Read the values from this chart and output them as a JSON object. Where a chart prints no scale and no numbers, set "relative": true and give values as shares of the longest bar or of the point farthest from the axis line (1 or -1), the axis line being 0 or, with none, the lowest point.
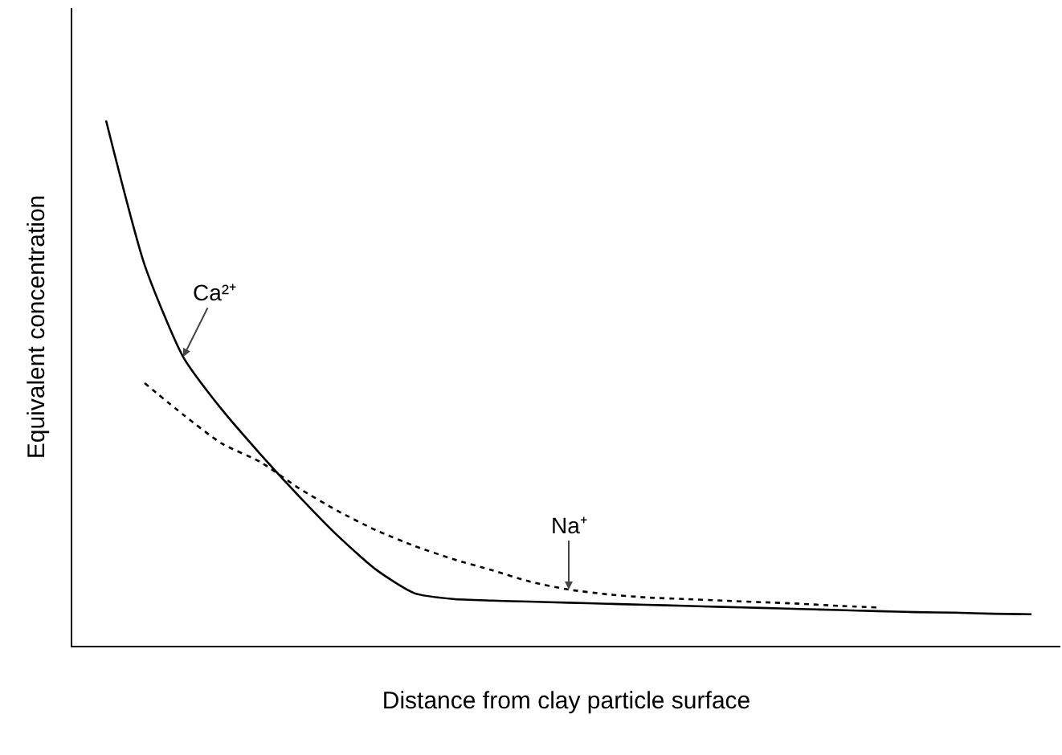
{
  "chart_data": {
    "type": "line",
    "relative": true,
    "xlabel": "Distance from clay particle surface",
    "ylabel": "Equivalent concentration",
    "categories": [
      null,
      null,
      null,
      null,
      null,
      null,
      null,
      null,
      null,
      null,
      null,
      null,
      null,
      null,
      null,
      null,
      null,
      null,
      null,
      null,
      null,
      null,
      null,
      null,
      null
    ],
    "series": [
      {
        "name": "Ca²⁺",
        "color": "#000000",
        "line_style": "solid",
        "values": [
          1.0,
          0.725,
          0.55,
          0.45,
          0.365,
          0.285,
          0.21,
          0.145,
          0.1,
          0.089,
          0.086,
          0.084,
          0.082,
          0.08,
          0.078,
          0.076,
          0.074,
          0.072,
          0.07,
          0.068,
          0.066,
          0.064,
          0.063,
          0.061,
          0.06
        ]
      },
      {
        "name": "Na⁺",
        "color": "#000000",
        "line_style": "dotted",
        "values": [
          null,
          0.5,
          0.44,
          0.385,
          0.35,
          0.3,
          0.257,
          0.22,
          0.19,
          0.165,
          0.144,
          0.122,
          0.107,
          0.098,
          0.092,
          0.089,
          0.086,
          0.083,
          0.08,
          0.076,
          0.073,
          null,
          null,
          null,
          null
        ]
      }
    ],
    "grid": false,
    "legend": false,
    "marker": "none"
  }
}
